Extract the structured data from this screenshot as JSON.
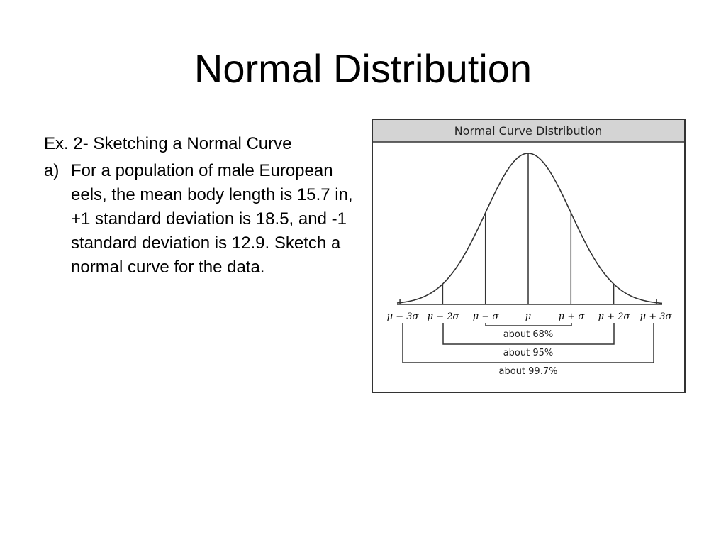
{
  "slide": {
    "title": "Normal Distribution"
  },
  "content": {
    "heading": "Ex. 2- Sketching a Normal Curve",
    "item_marker": "a)",
    "item_text": "For a population of male European eels, the mean body length is 15.7 in,  +1 standard deviation is 18.5, and -1 standard deviation is 12.9. Sketch a normal curve for the data."
  },
  "figure": {
    "title": "Normal Curve Distribution",
    "header_fill": "#d4d4d4",
    "axis_labels": [
      "μ − 3σ",
      "μ − 2σ",
      "μ − σ",
      "μ",
      "μ + σ",
      "μ + 2σ",
      "μ + 3σ"
    ],
    "bracket_labels": [
      "about 68%",
      "about 95%",
      "about 99.7%"
    ]
  }
}
